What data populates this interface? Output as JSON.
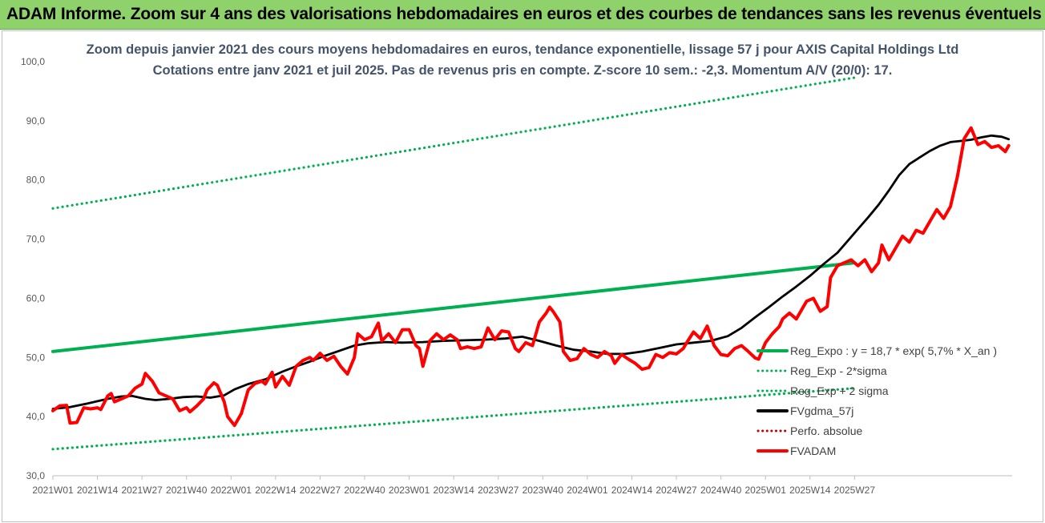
{
  "banner": {
    "title": "ADAM Informe. Zoom sur 4 ans des valorisations hebdomadaires en euros et des courbes de tendances sans les revenus éventuels"
  },
  "chart_data": {
    "type": "line",
    "title": "Zoom depuis janvier 2021 des cours moyens hebdomadaires en euros, tendance exponentielle, lissage 57 j pour AXIS Capital Holdings Ltd",
    "subtitle": "Cotations entre janv 2021 et juil 2025. Pas de revenus pris en compte. Z-score 10 sem.: -2,3. Momentum A/V (20/0): 17.",
    "ylim": [
      30,
      100
    ],
    "y_ticks": [
      "30,0",
      "40,0",
      "50,0",
      "60,0",
      "70,0",
      "80,0",
      "90,0",
      "100,0"
    ],
    "x_ticks": [
      "2021W01",
      "2021W14",
      "2021W27",
      "2021W40",
      "2022W01",
      "2022W14",
      "2022W27",
      "2022W40",
      "2023W01",
      "2023W14",
      "2023W27",
      "2023W40",
      "2024W01",
      "2024W14",
      "2024W27",
      "2024W40",
      "2025W01",
      "2025W14",
      "2025W27"
    ],
    "grid": false,
    "legend_position": "bottom-right",
    "series": [
      {
        "name": "Reg_Expo : y = 18,7 * exp( 5,7% *  X_an )",
        "color": "#00b050",
        "style": "solid",
        "points": [
          [
            0,
            51.0
          ],
          [
            234,
            66.0
          ]
        ]
      },
      {
        "name": "Reg_Exp - 2*sigma",
        "color": "#00b050",
        "style": "dotted",
        "points": [
          [
            0,
            34.5
          ],
          [
            234,
            44.8
          ]
        ]
      },
      {
        "name": "Reg_Exp + 2 sigma",
        "color": "#00b050",
        "style": "dotted",
        "points": [
          [
            0,
            75.2
          ],
          [
            234,
            97.3
          ]
        ]
      },
      {
        "name": "FVgdma_57j",
        "color": "#000000",
        "style": "solid",
        "points": [
          [
            0,
            41.3
          ],
          [
            5,
            41.6
          ],
          [
            10,
            42.2
          ],
          [
            16,
            43.0
          ],
          [
            20,
            43.4
          ],
          [
            23,
            43.5
          ],
          [
            27,
            43.0
          ],
          [
            30,
            42.8
          ],
          [
            34,
            43.0
          ],
          [
            38,
            43.3
          ],
          [
            42,
            43.4
          ],
          [
            46,
            43.2
          ],
          [
            50,
            43.6
          ],
          [
            53,
            44.6
          ],
          [
            57,
            45.5
          ],
          [
            62,
            46.3
          ],
          [
            67,
            47.6
          ],
          [
            71,
            48.5
          ],
          [
            75,
            49.3
          ],
          [
            79,
            50.2
          ],
          [
            83,
            51.0
          ],
          [
            88,
            52.0
          ],
          [
            92,
            52.4
          ],
          [
            97,
            52.6
          ],
          [
            102,
            52.5
          ],
          [
            108,
            52.6
          ],
          [
            114,
            52.8
          ],
          [
            120,
            52.9
          ],
          [
            126,
            53.0
          ],
          [
            132,
            53.2
          ],
          [
            137,
            53.5
          ],
          [
            142,
            52.8
          ],
          [
            147,
            52.0
          ],
          [
            152,
            51.3
          ],
          [
            157,
            51.0
          ],
          [
            162,
            50.6
          ],
          [
            167,
            50.6
          ],
          [
            172,
            51.0
          ],
          [
            177,
            51.6
          ],
          [
            182,
            52.2
          ],
          [
            187,
            52.5
          ],
          [
            192,
            52.8
          ],
          [
            197,
            53.6
          ],
          [
            201,
            55.0
          ],
          [
            205,
            56.8
          ],
          [
            209,
            58.5
          ],
          [
            213,
            60.3
          ],
          [
            217,
            62.0
          ],
          [
            221,
            63.8
          ],
          [
            225,
            65.8
          ],
          [
            229,
            67.7
          ],
          [
            232,
            69.7
          ],
          [
            235,
            71.7
          ],
          [
            238,
            73.7
          ],
          [
            241,
            75.8
          ],
          [
            244,
            78.2
          ],
          [
            247,
            80.8
          ],
          [
            250,
            82.7
          ],
          [
            253,
            83.8
          ],
          [
            256,
            84.9
          ],
          [
            259,
            85.8
          ],
          [
            262,
            86.4
          ],
          [
            265,
            86.6
          ],
          [
            268,
            86.8
          ],
          [
            271,
            87.2
          ],
          [
            274,
            87.5
          ],
          [
            277,
            87.3
          ],
          [
            279,
            86.9
          ]
        ]
      },
      {
        "name": "Perfo. absolue",
        "color": "#c00000",
        "style": "dotted",
        "points": []
      },
      {
        "name": "FVADAM",
        "color": "#ff0000",
        "style": "solid",
        "points": [
          [
            0,
            41.0
          ],
          [
            2,
            41.8
          ],
          [
            4,
            41.9
          ],
          [
            5,
            38.9
          ],
          [
            7,
            39.0
          ],
          [
            9,
            41.5
          ],
          [
            11,
            41.3
          ],
          [
            13,
            41.5
          ],
          [
            14,
            41.2
          ],
          [
            16,
            43.5
          ],
          [
            17,
            43.9
          ],
          [
            18,
            42.5
          ],
          [
            20,
            43.0
          ],
          [
            22,
            43.5
          ],
          [
            24,
            44.8
          ],
          [
            26,
            45.5
          ],
          [
            27,
            47.3
          ],
          [
            29,
            46.0
          ],
          [
            31,
            44.0
          ],
          [
            33,
            43.5
          ],
          [
            35,
            43.0
          ],
          [
            37,
            41.0
          ],
          [
            39,
            41.5
          ],
          [
            40,
            40.8
          ],
          [
            42,
            41.8
          ],
          [
            44,
            43.0
          ],
          [
            45,
            44.5
          ],
          [
            47,
            45.7
          ],
          [
            48,
            45.3
          ],
          [
            50,
            42.5
          ],
          [
            51,
            40.0
          ],
          [
            53,
            38.5
          ],
          [
            55,
            40.5
          ],
          [
            57,
            44.5
          ],
          [
            59,
            45.6
          ],
          [
            61,
            46.0
          ],
          [
            62,
            45.5
          ],
          [
            64,
            47.5
          ],
          [
            65,
            45.0
          ],
          [
            67,
            46.8
          ],
          [
            69,
            45.3
          ],
          [
            71,
            48.5
          ],
          [
            73,
            49.5
          ],
          [
            75,
            50.0
          ],
          [
            76,
            49.5
          ],
          [
            78,
            50.7
          ],
          [
            80,
            49.5
          ],
          [
            82,
            50.2
          ],
          [
            84,
            48.5
          ],
          [
            86,
            47.2
          ],
          [
            88,
            50.0
          ],
          [
            89,
            54.0
          ],
          [
            91,
            53.0
          ],
          [
            93,
            53.5
          ],
          [
            95,
            55.8
          ],
          [
            96,
            52.8
          ],
          [
            98,
            54.0
          ],
          [
            100,
            52.5
          ],
          [
            102,
            54.7
          ],
          [
            104,
            54.7
          ],
          [
            106,
            52.0
          ],
          [
            107,
            51.5
          ],
          [
            108,
            48.5
          ],
          [
            110,
            52.8
          ],
          [
            112,
            54.0
          ],
          [
            114,
            53.0
          ],
          [
            116,
            53.8
          ],
          [
            118,
            53.0
          ],
          [
            119,
            51.5
          ],
          [
            121,
            51.8
          ],
          [
            123,
            51.5
          ],
          [
            125,
            51.8
          ],
          [
            127,
            55.0
          ],
          [
            129,
            53.0
          ],
          [
            131,
            54.5
          ],
          [
            133,
            54.3
          ],
          [
            135,
            51.5
          ],
          [
            136,
            51.0
          ],
          [
            138,
            52.5
          ],
          [
            140,
            52.0
          ],
          [
            142,
            56.0
          ],
          [
            144,
            57.5
          ],
          [
            145,
            58.5
          ],
          [
            146,
            57.8
          ],
          [
            148,
            56.0
          ],
          [
            149,
            51.0
          ],
          [
            151,
            49.5
          ],
          [
            153,
            49.8
          ],
          [
            155,
            51.5
          ],
          [
            157,
            50.5
          ],
          [
            159,
            50.0
          ],
          [
            161,
            51.0
          ],
          [
            163,
            50.3
          ],
          [
            164,
            49.0
          ],
          [
            166,
            50.5
          ],
          [
            168,
            49.7
          ],
          [
            170,
            49.0
          ],
          [
            172,
            48.0
          ],
          [
            174,
            48.3
          ],
          [
            176,
            50.5
          ],
          [
            178,
            50.0
          ],
          [
            180,
            50.8
          ],
          [
            182,
            50.6
          ],
          [
            184,
            51.5
          ],
          [
            185,
            52.5
          ],
          [
            187,
            54.3
          ],
          [
            189,
            53.2
          ],
          [
            191,
            55.3
          ],
          [
            193,
            52.0
          ],
          [
            195,
            50.5
          ],
          [
            197,
            50.3
          ],
          [
            199,
            51.5
          ],
          [
            201,
            52.0
          ],
          [
            203,
            51.0
          ],
          [
            205,
            49.9
          ],
          [
            206,
            49.7
          ],
          [
            208,
            52.5
          ],
          [
            210,
            54.0
          ],
          [
            212,
            55.2
          ],
          [
            213,
            56.5
          ],
          [
            215,
            57.5
          ],
          [
            217,
            56.5
          ],
          [
            219,
            58.5
          ],
          [
            220,
            59.5
          ],
          [
            222,
            60.0
          ],
          [
            224,
            57.8
          ],
          [
            226,
            58.6
          ],
          [
            227,
            63.5
          ],
          [
            229,
            65.5
          ],
          [
            231,
            66.0
          ],
          [
            233,
            66.5
          ],
          [
            235,
            65.5
          ],
          [
            237,
            66.5
          ],
          [
            239,
            64.5
          ],
          [
            241,
            66.0
          ],
          [
            242,
            69.0
          ],
          [
            244,
            66.5
          ],
          [
            246,
            68.5
          ],
          [
            248,
            70.5
          ],
          [
            250,
            69.5
          ],
          [
            252,
            71.5
          ],
          [
            254,
            71.0
          ],
          [
            256,
            73.0
          ],
          [
            258,
            75.0
          ],
          [
            260,
            73.5
          ],
          [
            262,
            75.5
          ],
          [
            264,
            80.5
          ],
          [
            266,
            87.0
          ],
          [
            268,
            88.8
          ],
          [
            270,
            86.0
          ],
          [
            272,
            86.5
          ],
          [
            274,
            85.5
          ],
          [
            276,
            85.8
          ],
          [
            278,
            84.8
          ],
          [
            279,
            85.8
          ]
        ]
      }
    ]
  },
  "legend": {
    "items": [
      {
        "label": "Reg_Expo : y = 18,7 * exp( 5,7% *  X_an )",
        "color": "#00b050",
        "style": "solid"
      },
      {
        "label": "Reg_Exp - 2*sigma",
        "color": "#00b050",
        "style": "dotted"
      },
      {
        "label": "Reg_Exp + 2 sigma",
        "color": "#00b050",
        "style": "dotted"
      },
      {
        "label": "FVgdma_57j",
        "color": "#000000",
        "style": "solid"
      },
      {
        "label": "Perfo. absolue",
        "color": "#c00000",
        "style": "dotted"
      },
      {
        "label": "FVADAM",
        "color": "#ff0000",
        "style": "solid"
      }
    ]
  }
}
